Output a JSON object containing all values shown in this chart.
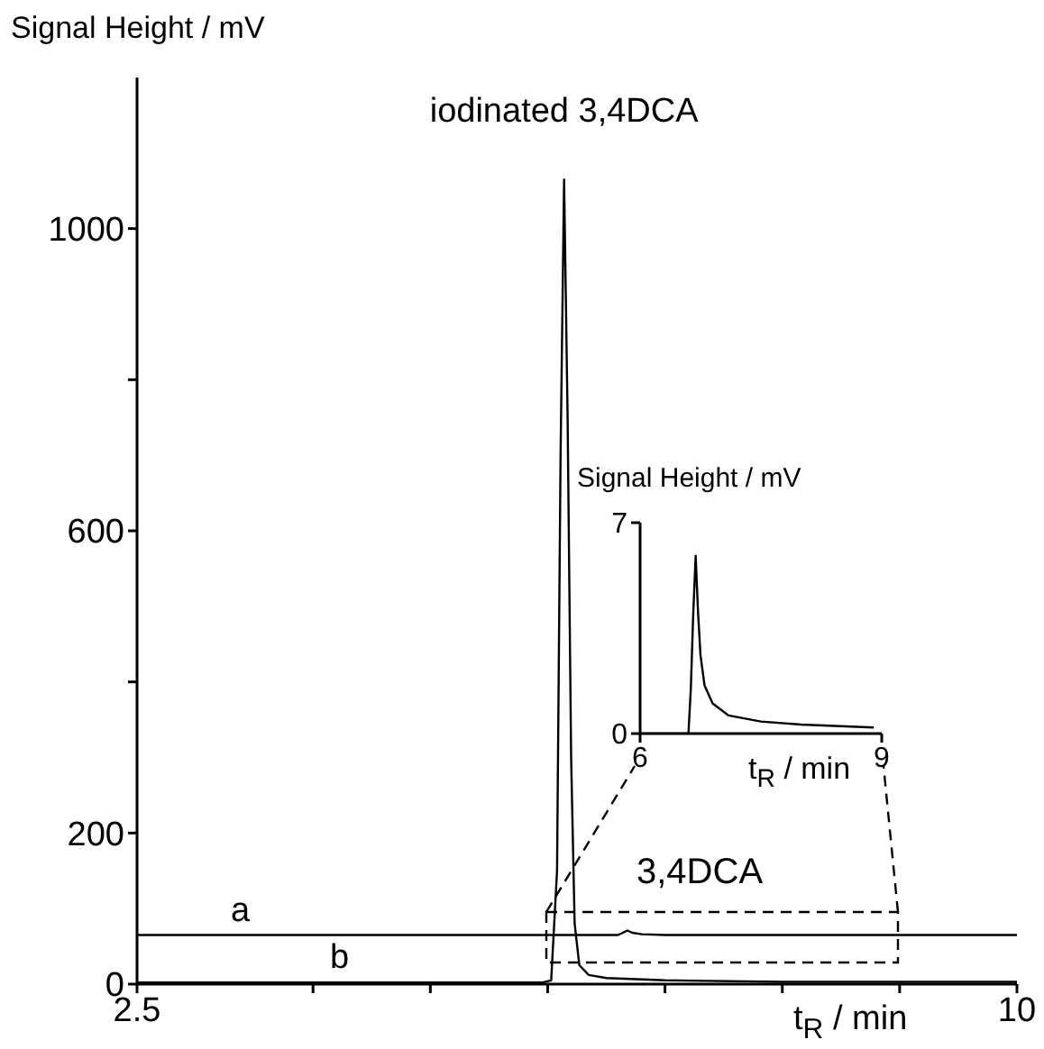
{
  "chart_data": [
    {
      "type": "line",
      "ylabel": "Signal Height / mV",
      "xlabel": "t$_{R}$ / min",
      "xlim": [
        2.5,
        10
      ],
      "xticks": [
        2.5,
        {
          "value": 4,
          "label": null
        },
        {
          "value": 5,
          "label": null
        },
        {
          "value": 6,
          "label": null
        },
        {
          "value": 7,
          "label": null
        },
        {
          "value": 8,
          "label": null
        },
        {
          "value": 9,
          "label": null
        },
        10
      ],
      "ylim": [
        0,
        1200
      ],
      "yticks": [
        0,
        200,
        {
          "value": 400,
          "label": null
        },
        600,
        {
          "value": 800,
          "label": null
        },
        1000
      ],
      "marker": "none",
      "annotations": [
        {
          "text": "iodinated 3,4DCA",
          "x": 6.14,
          "y": 1065
        },
        "3,4DCA"
      ],
      "series": [
        {
          "name": "a",
          "color": "#000000",
          "x": [
            2.5,
            6.6,
            6.64,
            6.68,
            6.72,
            6.8,
            7.0,
            10
          ],
          "values": [
            65,
            65,
            68,
            71,
            68,
            66,
            65,
            65
          ]
        },
        {
          "name": "b",
          "color": "#000000",
          "x": [
            2.5,
            5.95,
            6.03,
            6.08,
            6.11,
            6.14,
            6.17,
            6.2,
            6.23,
            6.27,
            6.35,
            6.5,
            7.0,
            8.0,
            10
          ],
          "values": [
            2,
            2,
            5,
            150,
            700,
            1065,
            750,
            300,
            80,
            25,
            12,
            8,
            5,
            3,
            3
          ]
        }
      ]
    },
    {
      "type": "line",
      "ylabel": "Signal Height / mV",
      "xlabel": "t$_{R}$ / min",
      "xlim": [
        6,
        9
      ],
      "xticks": [
        6,
        9
      ],
      "ylim": [
        0,
        7
      ],
      "yticks": [
        0,
        7
      ],
      "marker": "none",
      "series": [
        {
          "color": "#000000",
          "x": [
            6.0,
            6.6,
            6.63,
            6.66,
            6.69,
            6.72,
            6.75,
            6.8,
            6.9,
            7.1,
            7.5,
            8.0,
            8.9
          ],
          "values": [
            0,
            0,
            1.5,
            4,
            5.9,
            4,
            2.6,
            1.6,
            1,
            0.6,
            0.4,
            0.3,
            0.2
          ]
        }
      ]
    }
  ]
}
